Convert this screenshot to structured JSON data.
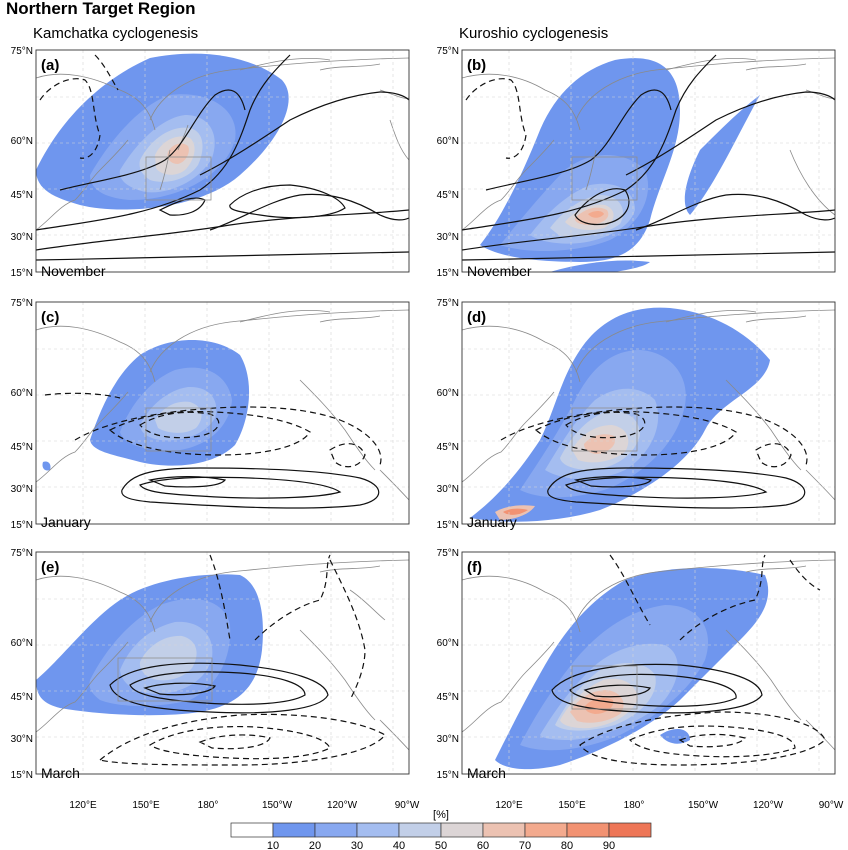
{
  "figure": {
    "title": "Northern Target Region",
    "columns": [
      "Kamchatka cyclogenesis",
      "Kuroshio cyclogenesis"
    ],
    "months": [
      "November",
      "January",
      "March"
    ],
    "panel_letters": [
      "(a)",
      "(b)",
      "(c)",
      "(d)",
      "(e)",
      "(f)"
    ],
    "lat_ticks": [
      "75°N",
      "60°N",
      "45°N",
      "30°N",
      "15°N"
    ],
    "lon_ticks": [
      "120°E",
      "150°E",
      "180°",
      "150°W",
      "120°W",
      "90°W"
    ],
    "colorbar": {
      "unit": "[%]",
      "labels": [
        "10",
        "20",
        "30",
        "40",
        "50",
        "60",
        "70",
        "80",
        "90"
      ],
      "colors": [
        "#ffffff",
        "#6f96ee",
        "#88a8f0",
        "#a4bdf0",
        "#c2cfe8",
        "#dcd5d6",
        "#ecc2b2",
        "#f3aa8e",
        "#f29272",
        "#ee7657"
      ]
    },
    "colors": {
      "land_outline": "#8a8a8a",
      "contour": "#111111",
      "gridline": "#d6d6d6",
      "target_box": "#8f8f8f"
    }
  }
}
